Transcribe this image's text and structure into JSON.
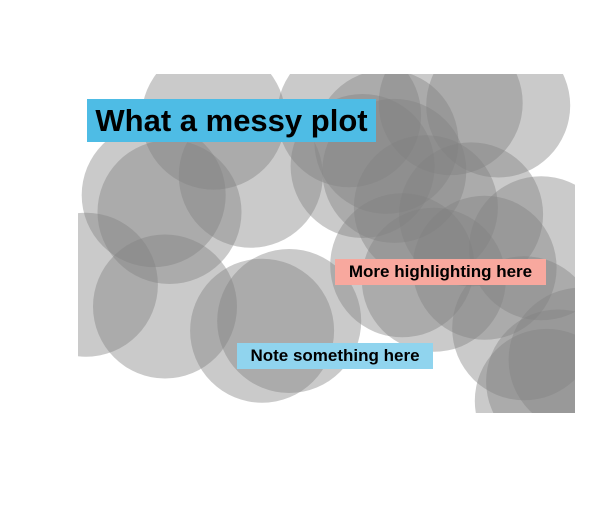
{
  "chart_data": {
    "type": "scatter",
    "title": "What a messy plot",
    "xlabel": "",
    "ylabel": "",
    "axes_visible": false,
    "grid": false,
    "marker": "circle",
    "marker_color": "#808080",
    "marker_alpha": 0.42,
    "marker_size": 72,
    "points": [
      {
        "x": 1.2,
        "y": 0.18
      },
      {
        "x": 2.4,
        "y": 0.17
      },
      {
        "x": 3.3,
        "y": 0.12
      },
      {
        "x": 3.72,
        "y": 0.13
      },
      {
        "x": 0.67,
        "y": 0.5
      },
      {
        "x": 1.53,
        "y": 0.42
      },
      {
        "x": 0.81,
        "y": 0.57
      },
      {
        "x": 2.52,
        "y": 0.38
      },
      {
        "x": 2.73,
        "y": 0.28
      },
      {
        "x": 2.8,
        "y": 0.4
      },
      {
        "x": 3.08,
        "y": 0.55
      },
      {
        "x": 3.48,
        "y": 0.58
      },
      {
        "x": 0.07,
        "y": 0.87
      },
      {
        "x": 0.77,
        "y": 0.96
      },
      {
        "x": 1.63,
        "y": 1.06
      },
      {
        "x": 1.87,
        "y": 1.02
      },
      {
        "x": 2.87,
        "y": 0.79
      },
      {
        "x": 3.15,
        "y": 0.85
      },
      {
        "x": 3.6,
        "y": 0.8
      },
      {
        "x": 4.1,
        "y": 0.72
      },
      {
        "x": 3.95,
        "y": 1.05
      },
      {
        "x": 4.25,
        "y": 1.27
      },
      {
        "x": 4.15,
        "y": 1.35
      },
      {
        "x": 4.45,
        "y": 1.18
      }
    ],
    "xlim": [
      0,
      4.4
    ],
    "ylim": [
      1.4,
      0.0
    ],
    "annotations": [
      {
        "text": "More highlighting here",
        "background": "#f8a89e"
      },
      {
        "text": "Note something here",
        "background": "#90d4ee"
      }
    ]
  },
  "colors": {
    "title_background": "#4ebce5",
    "text": "#000000",
    "page_background": "#ffffff"
  }
}
